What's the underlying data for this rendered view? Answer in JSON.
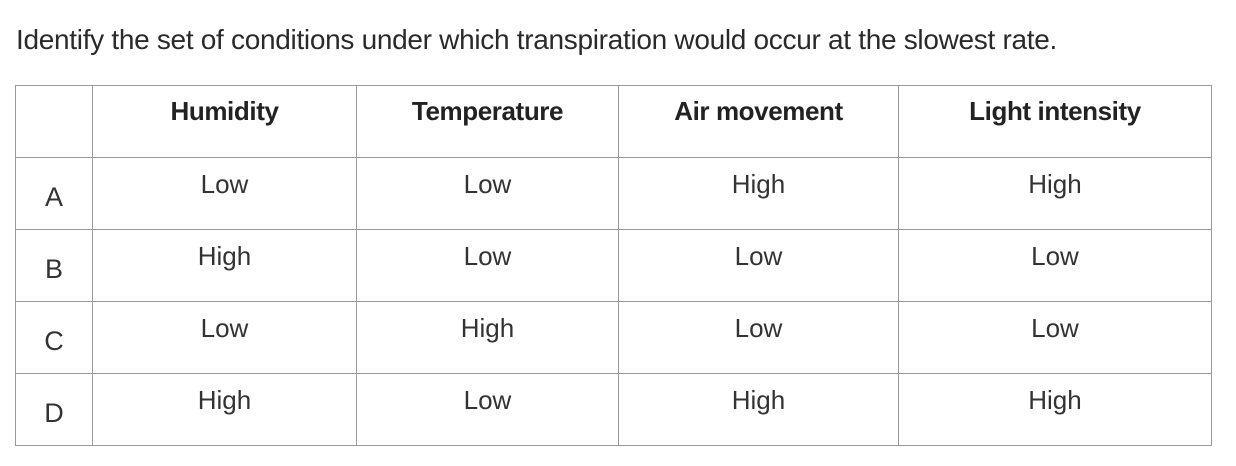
{
  "question": "Identify the set of conditions under which transpiration would occur at the slowest rate.",
  "table": {
    "headers": [
      "",
      "Humidity",
      "Temperature",
      "Air movement",
      "Light intensity"
    ],
    "rows": [
      {
        "label": "A",
        "humidity": "Low",
        "temperature": "Low",
        "air_movement": "High",
        "light_intensity": "High"
      },
      {
        "label": "B",
        "humidity": "High",
        "temperature": "Low",
        "air_movement": "Low",
        "light_intensity": "Low"
      },
      {
        "label": "C",
        "humidity": "Low",
        "temperature": "High",
        "air_movement": "Low",
        "light_intensity": "Low"
      },
      {
        "label": "D",
        "humidity": "High",
        "temperature": "Low",
        "air_movement": "High",
        "light_intensity": "High"
      }
    ]
  }
}
